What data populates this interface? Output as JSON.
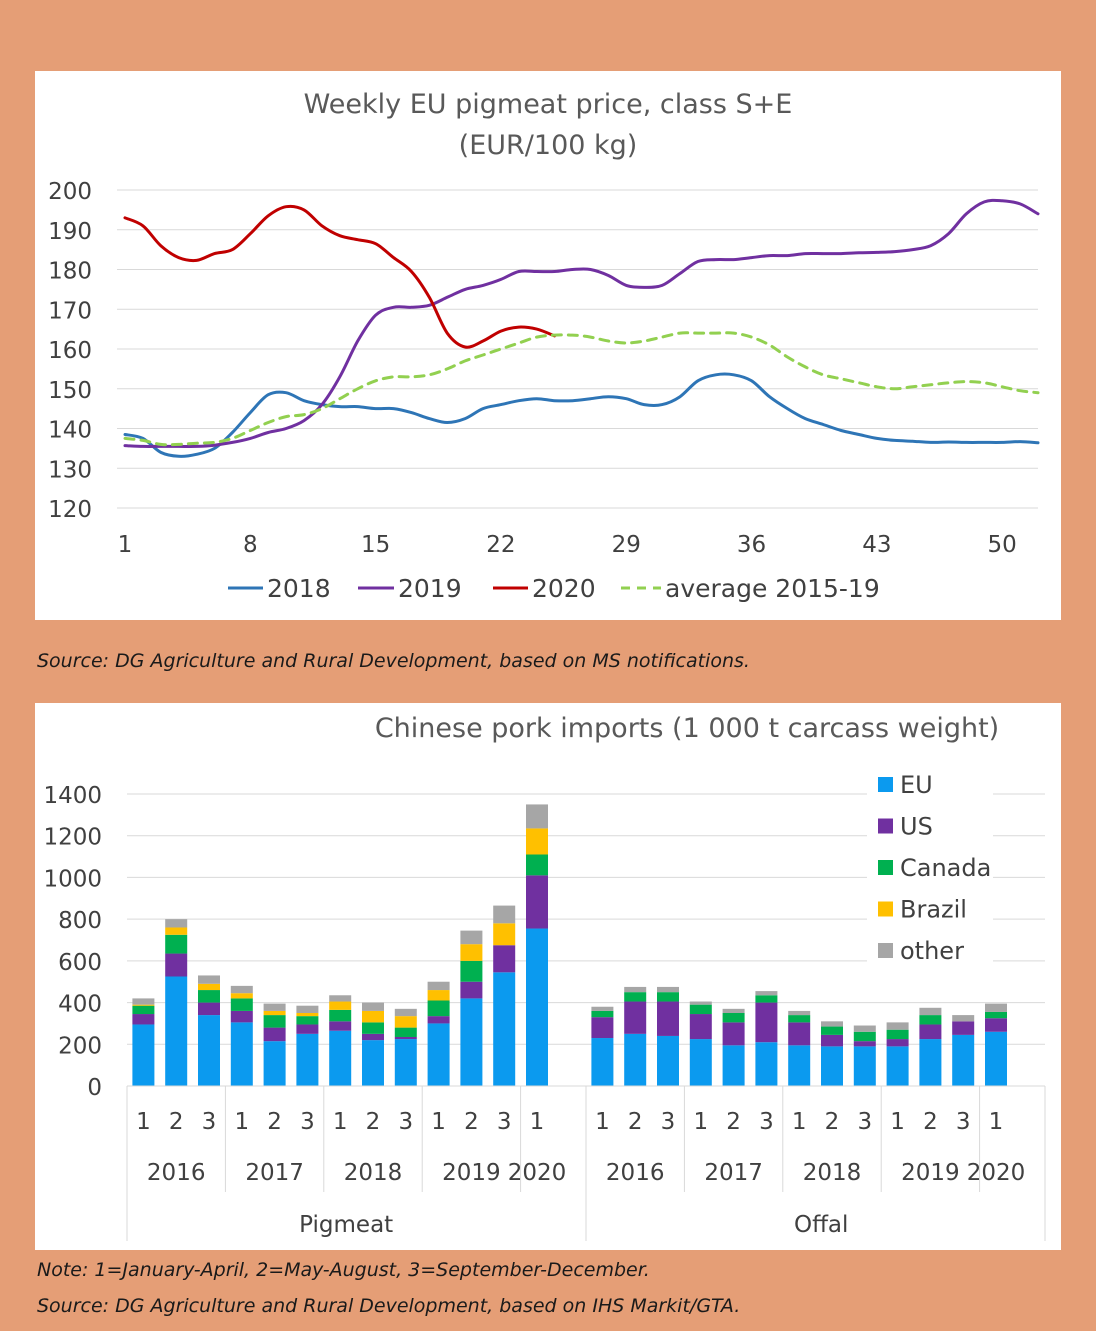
{
  "captions": {
    "source1": "Source: DG Agriculture and Rural Development, based on MS notifications.",
    "note2": "Note: 1=January-April, 2=May-August, 3=September-December.",
    "source2": "Source: DG Agriculture and Rural Development, based on IHS Markit/GTA."
  },
  "chart_data": [
    {
      "type": "line",
      "title": "Weekly EU pigmeat price, class S+E",
      "subtitle": "(EUR/100 kg)",
      "ylim": [
        120,
        200
      ],
      "yticks": [
        120,
        130,
        140,
        150,
        160,
        170,
        180,
        190,
        200
      ],
      "xlim": [
        1,
        52
      ],
      "xticks": [
        1,
        8,
        15,
        22,
        29,
        36,
        43,
        50
      ],
      "grid": true,
      "legend_position": "bottom",
      "series": [
        {
          "name": "2018",
          "color": "#2E75B6",
          "dash": false,
          "x": [
            1,
            2,
            3,
            4,
            5,
            6,
            7,
            8,
            9,
            10,
            11,
            12,
            13,
            14,
            15,
            16,
            17,
            18,
            19,
            20,
            21,
            22,
            23,
            24,
            25,
            26,
            27,
            28,
            29,
            30,
            31,
            32,
            33,
            34,
            35,
            36,
            37,
            38,
            39,
            40,
            41,
            42,
            43,
            44,
            45,
            46,
            47,
            48,
            49,
            50,
            51,
            52
          ],
          "y": [
            138.5,
            137.5,
            134,
            133,
            133.5,
            135,
            139,
            144,
            148.5,
            149,
            147,
            146,
            145.5,
            145.5,
            145,
            145,
            144,
            142.5,
            141.5,
            142.5,
            145,
            146,
            147,
            147.5,
            147,
            147,
            147.5,
            148,
            147.5,
            146,
            146,
            148,
            152,
            153.5,
            153.5,
            152,
            148,
            145,
            142.5,
            141,
            139.5,
            138.5,
            137.5,
            137,
            136.8,
            136.5,
            136.6,
            136.5,
            136.5,
            136.5,
            136.7,
            136.4
          ]
        },
        {
          "name": "2019",
          "color": "#7030A0",
          "dash": false,
          "x": [
            1,
            2,
            3,
            4,
            5,
            6,
            7,
            8,
            9,
            10,
            11,
            12,
            13,
            14,
            15,
            16,
            17,
            18,
            19,
            20,
            21,
            22,
            23,
            24,
            25,
            26,
            27,
            28,
            29,
            30,
            31,
            32,
            33,
            34,
            35,
            36,
            37,
            38,
            39,
            40,
            41,
            42,
            43,
            44,
            45,
            46,
            47,
            48,
            49,
            50,
            51,
            52
          ],
          "y": [
            135.7,
            135.5,
            135.5,
            135.5,
            135.5,
            135.8,
            136.5,
            137.5,
            139,
            140,
            142,
            146,
            153,
            162,
            168.5,
            170.5,
            170.5,
            171,
            173,
            175,
            176,
            177.5,
            179.5,
            179.5,
            179.5,
            180,
            180,
            178.5,
            176,
            175.5,
            176,
            179,
            182,
            182.5,
            182.5,
            183,
            183.5,
            183.5,
            184,
            184,
            184,
            184.2,
            184.3,
            184.5,
            185,
            186,
            189,
            194,
            197,
            197.3,
            196.5,
            194
          ]
        },
        {
          "name": "2020",
          "color": "#C00000",
          "dash": false,
          "x": [
            1,
            2,
            3,
            4,
            5,
            6,
            7,
            8,
            9,
            10,
            11,
            12,
            13,
            14,
            15,
            16,
            17,
            18,
            19,
            20,
            21,
            22,
            23,
            24,
            25
          ],
          "y": [
            193,
            191,
            186,
            183,
            182.3,
            184,
            185,
            189,
            193.5,
            195.8,
            195,
            191,
            188.5,
            187.5,
            186.5,
            183,
            179.5,
            173,
            164,
            160.5,
            162,
            164.5,
            165.5,
            165,
            163.3
          ]
        },
        {
          "name": "average 2015-19",
          "color": "#92D050",
          "dash": true,
          "x": [
            1,
            2,
            3,
            4,
            5,
            6,
            7,
            8,
            9,
            10,
            11,
            12,
            13,
            14,
            15,
            16,
            17,
            18,
            19,
            20,
            21,
            22,
            23,
            24,
            25,
            26,
            27,
            28,
            29,
            30,
            31,
            32,
            33,
            34,
            35,
            36,
            37,
            38,
            39,
            40,
            41,
            42,
            43,
            44,
            45,
            46,
            47,
            48,
            49,
            50,
            51,
            52
          ],
          "y": [
            137.5,
            137,
            136,
            136,
            136.3,
            136.5,
            137.5,
            139.5,
            141.5,
            143,
            143.5,
            145,
            147.5,
            150,
            152,
            153,
            153,
            153.5,
            155,
            157,
            158.5,
            160,
            161.5,
            163,
            163.5,
            163.5,
            163,
            162,
            161.5,
            162,
            163,
            164,
            164,
            164,
            164,
            163,
            161,
            158,
            155.5,
            153.5,
            152.5,
            151.5,
            150.5,
            150,
            150.5,
            151,
            151.5,
            151.8,
            151.5,
            150.5,
            149.5,
            149
          ]
        }
      ]
    },
    {
      "type": "bar",
      "stacked": true,
      "title": "Chinese pork imports (1 000 t carcass weight)",
      "ylim": [
        0,
        1400
      ],
      "yticks": [
        0,
        200,
        400,
        600,
        800,
        1000,
        1200,
        1400
      ],
      "grid": true,
      "legend_position": "right",
      "groups": [
        {
          "label": "Pigmeat",
          "years": [
            {
              "label": "2016",
              "periods": [
                "1",
                "2",
                "3"
              ]
            },
            {
              "label": "2017",
              "periods": [
                "1",
                "2",
                "3"
              ]
            },
            {
              "label": "2018",
              "periods": [
                "1",
                "2",
                "3"
              ]
            },
            {
              "label": "2019",
              "periods": [
                "1",
                "2",
                "3"
              ]
            },
            {
              "label": "2020",
              "periods": [
                "1"
              ]
            }
          ],
          "stacks": [
            [
              295,
              50,
              40,
              5,
              30
            ],
            [
              525,
              110,
              90,
              35,
              40
            ],
            [
              340,
              60,
              60,
              30,
              40
            ],
            [
              305,
              55,
              60,
              25,
              35
            ],
            [
              215,
              65,
              60,
              20,
              35
            ],
            [
              250,
              45,
              40,
              15,
              35
            ],
            [
              265,
              45,
              55,
              40,
              30
            ],
            [
              220,
              30,
              55,
              55,
              40
            ],
            [
              225,
              10,
              45,
              55,
              35
            ],
            [
              300,
              35,
              75,
              50,
              40
            ],
            [
              420,
              80,
              100,
              80,
              65
            ],
            [
              545,
              130,
              0,
              105,
              85
            ],
            [
              755,
              255,
              100,
              125,
              115
            ]
          ]
        },
        {
          "label": "Offal",
          "years": [
            {
              "label": "2016",
              "periods": [
                "1",
                "2",
                "3"
              ]
            },
            {
              "label": "2017",
              "periods": [
                "1",
                "2",
                "3"
              ]
            },
            {
              "label": "2018",
              "periods": [
                "1",
                "2",
                "3"
              ]
            },
            {
              "label": "2019",
              "periods": [
                "1",
                "2",
                "3"
              ]
            },
            {
              "label": "2020",
              "periods": [
                "1"
              ]
            }
          ],
          "stacks": [
            [
              230,
              100,
              30,
              0,
              20
            ],
            [
              250,
              155,
              45,
              0,
              25
            ],
            [
              240,
              165,
              45,
              0,
              25
            ],
            [
              225,
              120,
              45,
              0,
              15
            ],
            [
              195,
              110,
              45,
              0,
              20
            ],
            [
              210,
              190,
              35,
              0,
              20
            ],
            [
              195,
              110,
              35,
              0,
              20
            ],
            [
              190,
              55,
              40,
              0,
              25
            ],
            [
              190,
              25,
              45,
              0,
              30
            ],
            [
              190,
              35,
              45,
              0,
              35
            ],
            [
              225,
              70,
              45,
              0,
              35
            ],
            [
              245,
              65,
              0,
              0,
              30
            ],
            [
              260,
              65,
              30,
              0,
              40
            ]
          ]
        }
      ],
      "series": [
        {
          "name": "EU",
          "color": "#0B9AEF"
        },
        {
          "name": "US",
          "color": "#7030A0"
        },
        {
          "name": "Canada",
          "color": "#00B050"
        },
        {
          "name": "Brazil",
          "color": "#FFC000"
        },
        {
          "name": "other",
          "color": "#A6A6A6"
        }
      ]
    }
  ]
}
